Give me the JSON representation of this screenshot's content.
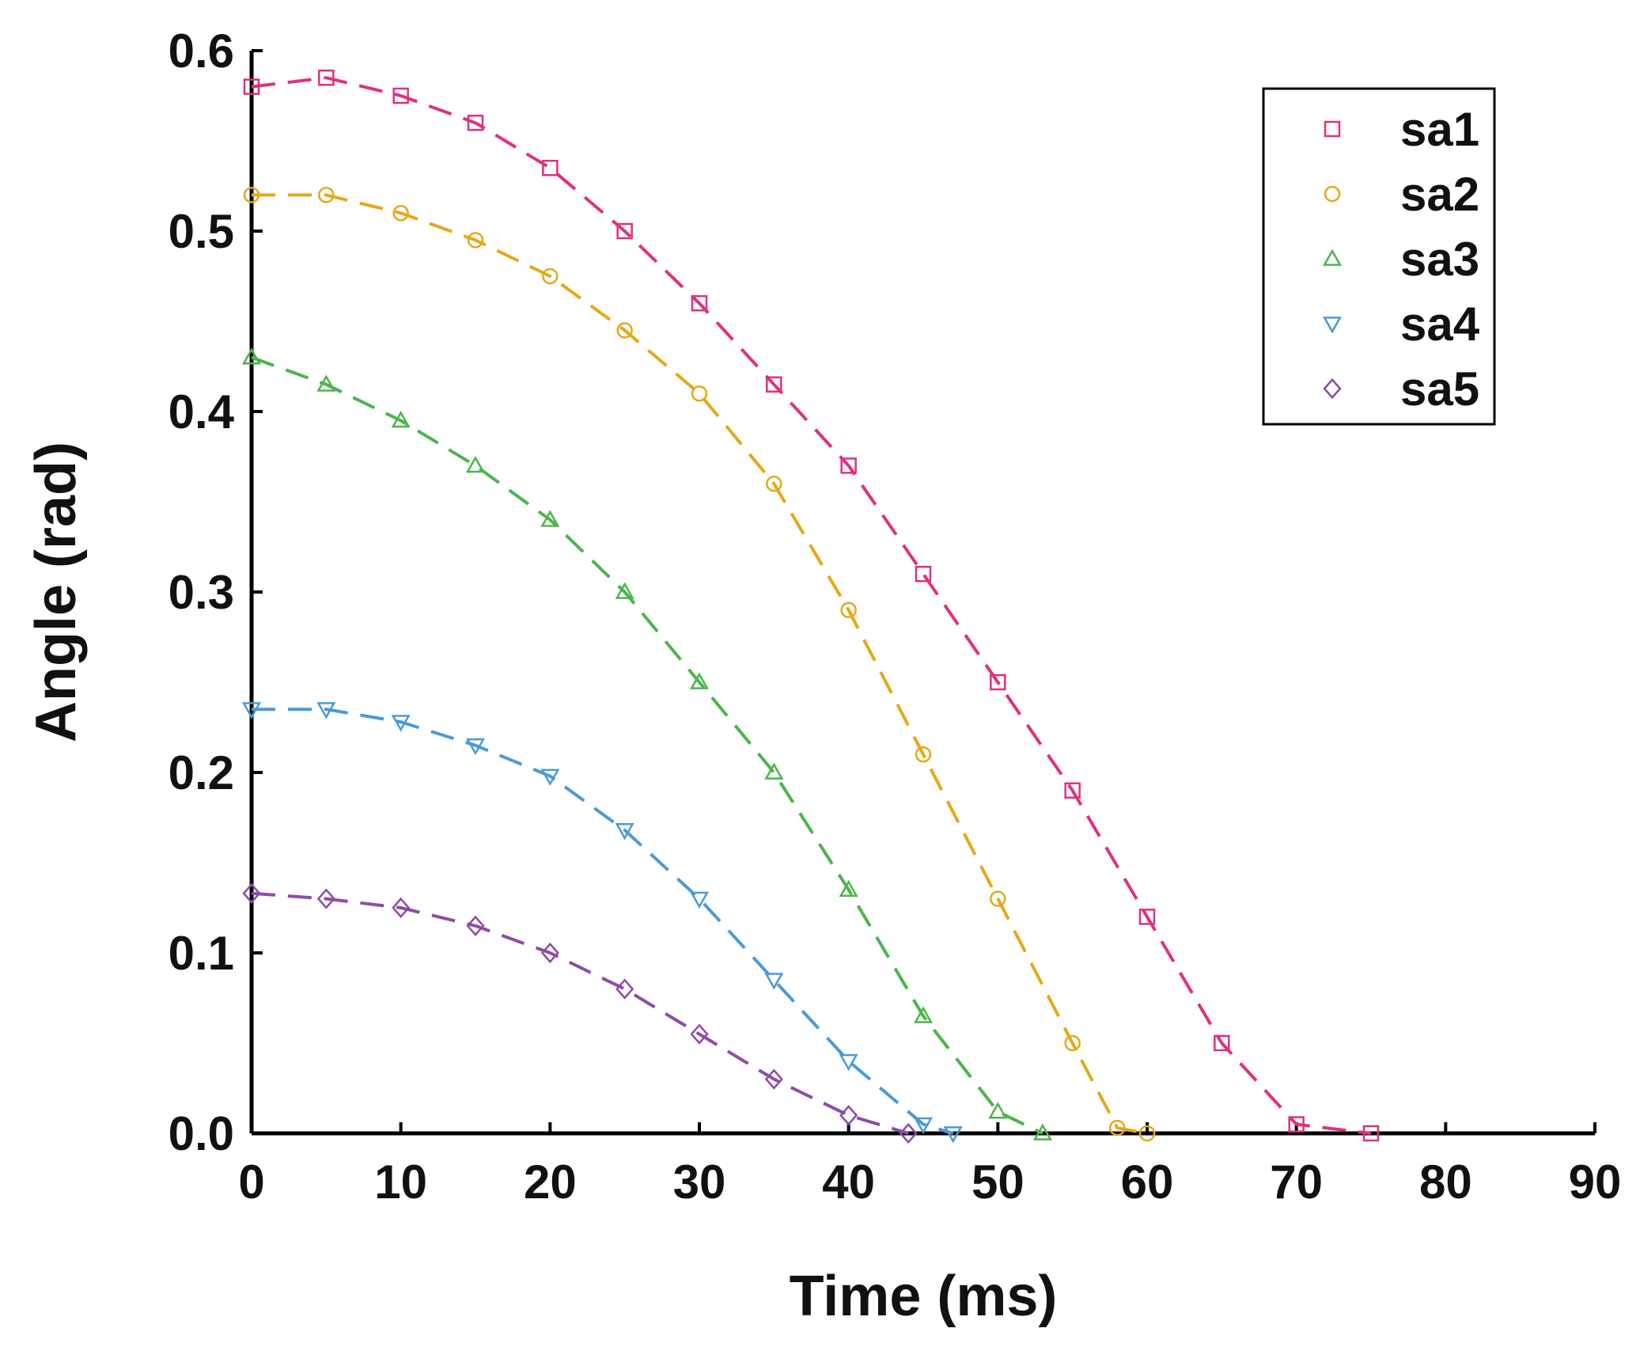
{
  "chart_data": {
    "type": "scatter",
    "title": "",
    "xlabel": "Time (ms)",
    "ylabel": "Angle (rad)",
    "xlim": [
      0,
      90
    ],
    "ylim": [
      0,
      0.6
    ],
    "xticks": [
      "0",
      "10",
      "20",
      "30",
      "40",
      "50",
      "60",
      "70",
      "80",
      "90"
    ],
    "yticks": [
      "0.0",
      "0.1",
      "0.2",
      "0.3",
      "0.4",
      "0.5",
      "0.6"
    ],
    "grid": false,
    "legend_position": "top-right",
    "series": [
      {
        "name": "sa1",
        "marker": "square",
        "color": "#E0307F",
        "fit_line": "dashed",
        "x": [
          0,
          5,
          10,
          15,
          20,
          25,
          30,
          35,
          40,
          45,
          50,
          55,
          60,
          65,
          70,
          75
        ],
        "y": [
          0.58,
          0.585,
          0.575,
          0.56,
          0.535,
          0.5,
          0.46,
          0.415,
          0.37,
          0.31,
          0.25,
          0.19,
          0.12,
          0.05,
          0.005,
          0.0
        ]
      },
      {
        "name": "sa2",
        "marker": "circle",
        "color": "#E6A817",
        "fit_line": "dashed",
        "x": [
          0,
          5,
          10,
          15,
          20,
          25,
          30,
          35,
          40,
          45,
          50,
          55,
          58,
          60
        ],
        "y": [
          0.52,
          0.52,
          0.51,
          0.495,
          0.475,
          0.445,
          0.41,
          0.36,
          0.29,
          0.21,
          0.13,
          0.05,
          0.003,
          0.0
        ]
      },
      {
        "name": "sa3",
        "marker": "triangle-up",
        "color": "#4CB54C",
        "fit_line": "dashed",
        "x": [
          0,
          5,
          10,
          15,
          20,
          25,
          30,
          35,
          40,
          45,
          50,
          53
        ],
        "y": [
          0.43,
          0.415,
          0.395,
          0.37,
          0.34,
          0.3,
          0.25,
          0.2,
          0.135,
          0.065,
          0.012,
          0.0
        ]
      },
      {
        "name": "sa4",
        "marker": "triangle-down",
        "color": "#4A9AD8",
        "fit_line": "dashed",
        "x": [
          0,
          5,
          10,
          15,
          20,
          25,
          30,
          35,
          40,
          45,
          47
        ],
        "y": [
          0.235,
          0.235,
          0.228,
          0.215,
          0.198,
          0.168,
          0.13,
          0.085,
          0.04,
          0.005,
          0.0
        ]
      },
      {
        "name": "sa5",
        "marker": "diamond",
        "color": "#8E4BA8",
        "fit_line": "dashed",
        "x": [
          0,
          5,
          10,
          15,
          20,
          25,
          30,
          35,
          40,
          44
        ],
        "y": [
          0.133,
          0.13,
          0.125,
          0.115,
          0.1,
          0.08,
          0.055,
          0.03,
          0.01,
          0.0
        ]
      }
    ]
  }
}
